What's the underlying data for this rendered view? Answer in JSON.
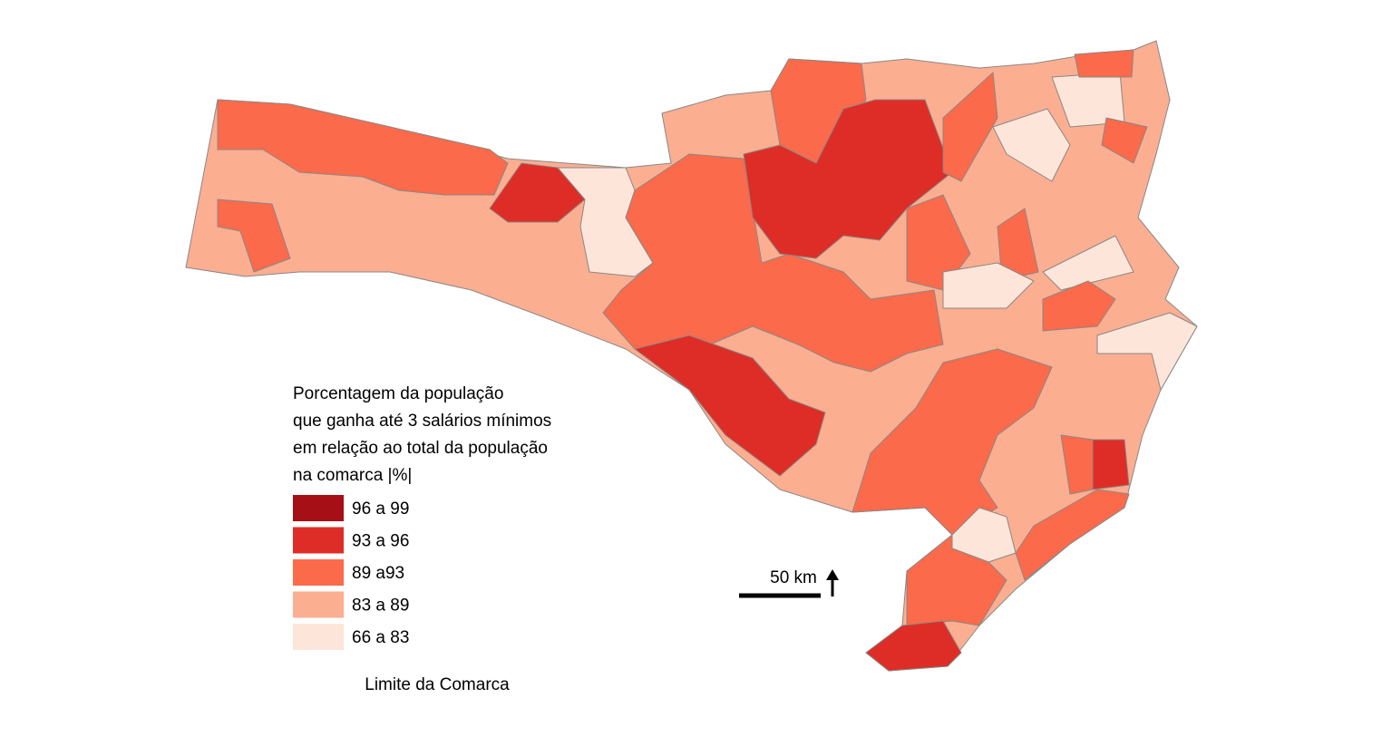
{
  "legend": {
    "title": [
      "Porcentagem da população",
      "que ganha até 3 salários mínimos",
      "em relação ao total da população",
      "na comarca |%|"
    ],
    "items": [
      {
        "label": "96 a 99",
        "color": "#a50f15"
      },
      {
        "label": "93 a 96",
        "color": "#de2d26"
      },
      {
        "label": "89 a93",
        "color": "#fb6a4a"
      },
      {
        "label": "83 a 89",
        "color": "#fcae91"
      },
      {
        "label": "66 a 83",
        "color": "#fee5d9"
      }
    ]
  },
  "scale_bar": {
    "label": "50 km"
  },
  "boundary_label": "Limite da Comarca"
}
